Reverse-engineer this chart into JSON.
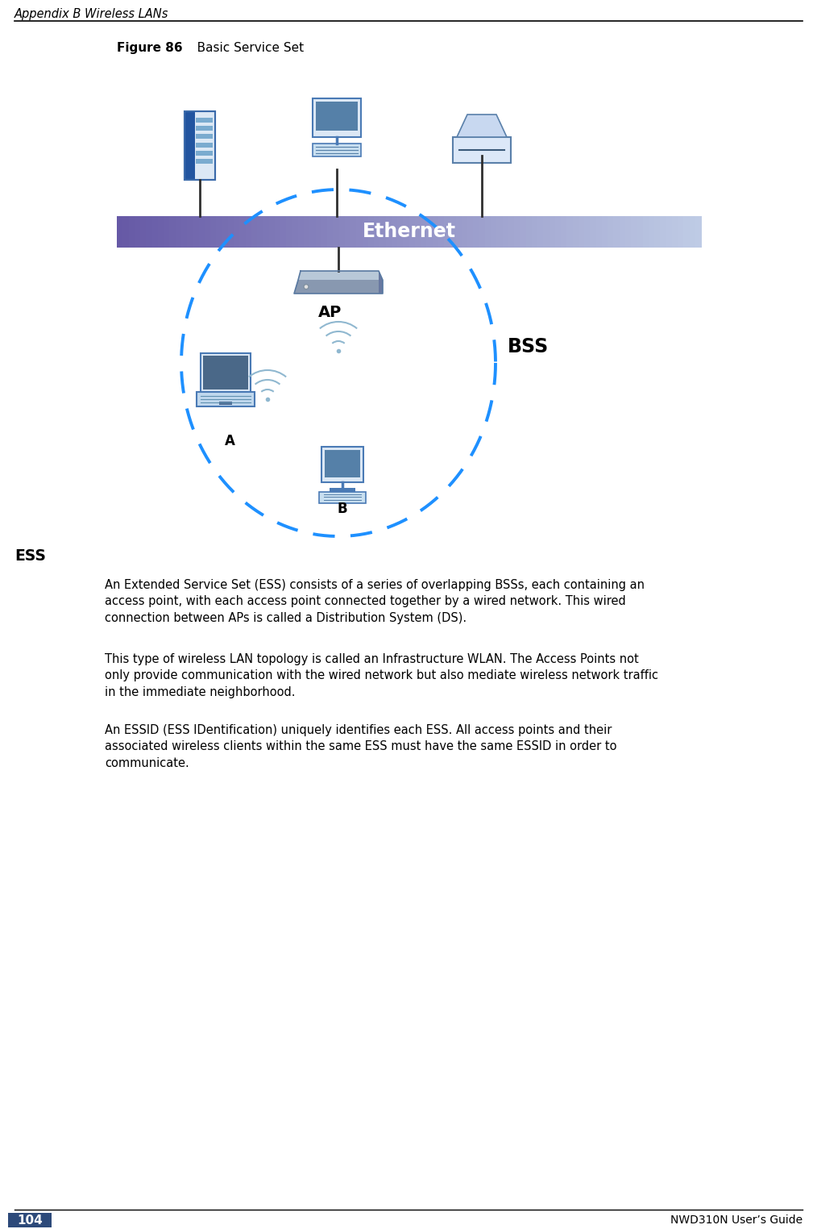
{
  "page_title": "Appendix B Wireless LANs",
  "page_number": "104",
  "page_footer": "NWD310N User’s Guide",
  "figure_label": "Figure 86",
  "figure_title": "   Basic Service Set",
  "section_heading": "ESS",
  "paragraph1": "An Extended Service Set (ESS) consists of a series of overlapping BSSs, each containing an\naccess point, with each access point connected together by a wired network. This wired\nconnection between APs is called a Distribution System (DS).",
  "paragraph2": "This type of wireless LAN topology is called an Infrastructure WLAN. The Access Points not\nonly provide communication with the wired network but also mediate wireless network traffic\nin the immediate neighborhood.",
  "paragraph3": "An ESSID (ESS IDentification) uniquely identifies each ESS. All access points and their\nassociated wireless clients within the same ESS must have the same ESSID in order to\ncommunicate.",
  "bg_color": "#ffffff",
  "ap_label": "AP",
  "bss_label": "BSS",
  "node_a_label": "A",
  "node_b_label": "B"
}
